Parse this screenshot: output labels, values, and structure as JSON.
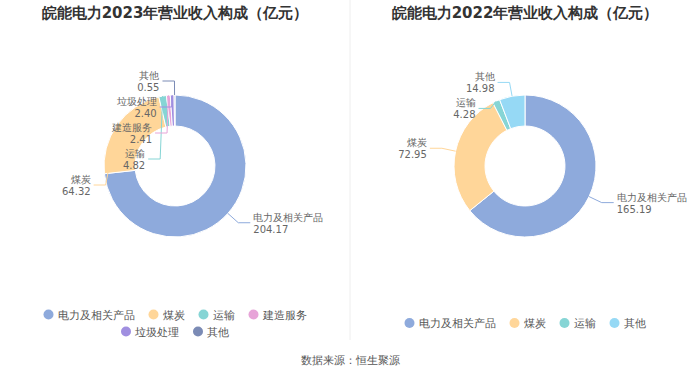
{
  "chart_data": [
    {
      "type": "donut",
      "title": "皖能电力2023年营业收入构成（亿元）",
      "categories": [
        "电力及相关产品",
        "煤炭",
        "运输",
        "建造服务",
        "垃圾处理",
        "其他"
      ],
      "values": [
        204.17,
        64.32,
        4.82,
        2.41,
        2.4,
        0.55
      ],
      "value_labels": [
        "204.17",
        "64.32",
        "4.82",
        "2.41",
        "2.40",
        "0.55"
      ],
      "colors": [
        "#8eaadc",
        "#ffd699",
        "#86d5d5",
        "#e7a4d8",
        "#a08fe0",
        "#7b8bb5"
      ],
      "data_labels": true,
      "legend": "bottom"
    },
    {
      "type": "donut",
      "title": "皖能电力2022年营业收入构成（亿元）",
      "categories": [
        "电力及相关产品",
        "煤炭",
        "运输",
        "其他"
      ],
      "values": [
        165.19,
        72.95,
        4.28,
        14.98
      ],
      "value_labels": [
        "165.19",
        "72.95",
        "4.28",
        "14.98"
      ],
      "colors": [
        "#8eaadc",
        "#ffd699",
        "#86d5d5",
        "#96d9f5"
      ],
      "data_labels": true,
      "legend": "bottom"
    }
  ],
  "source": "数据来源：恒生聚源"
}
